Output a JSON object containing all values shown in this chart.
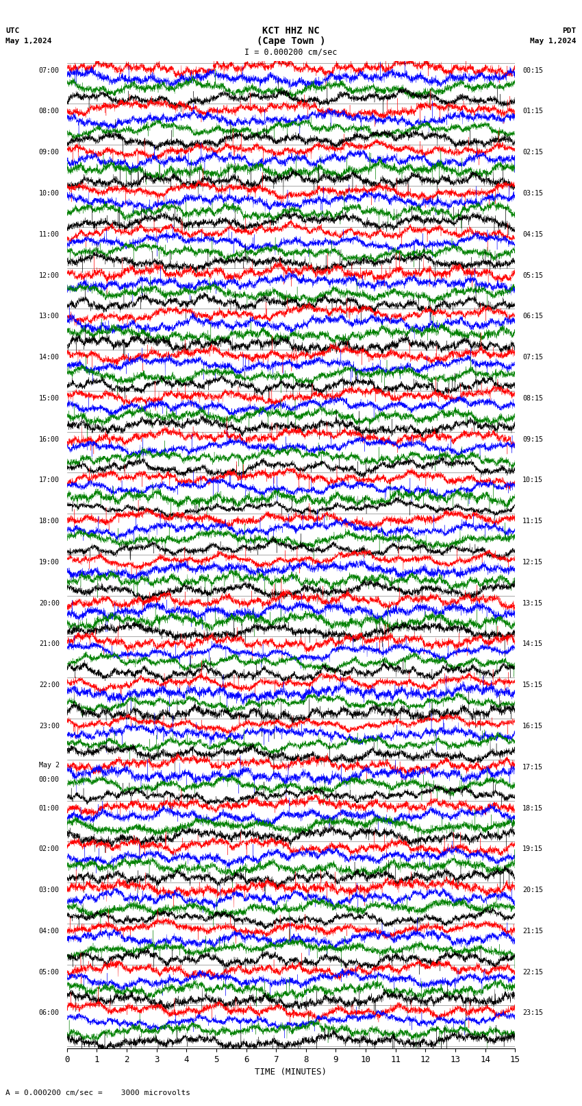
{
  "title_line1": "KCT HHZ NC",
  "title_line2": "(Cape Town )",
  "scale_text": "I = 0.000200 cm/sec",
  "bottom_text": "A = 0.000200 cm/sec =    3000 microvolts",
  "utc_label": "UTC",
  "date_left": "May 1,2024",
  "pdt_label": "PDT",
  "date_right": "May 1,2024",
  "xlabel": "TIME (MINUTES)",
  "xmin": 0,
  "xmax": 15,
  "xticks": [
    0,
    1,
    2,
    3,
    4,
    5,
    6,
    7,
    8,
    9,
    10,
    11,
    12,
    13,
    14,
    15
  ],
  "num_rows": 24,
  "samples_per_trace": 4500,
  "colors": [
    "red",
    "blue",
    "green",
    "black"
  ],
  "background": "white",
  "left_times_utc": [
    "07:00",
    "08:00",
    "09:00",
    "10:00",
    "11:00",
    "12:00",
    "13:00",
    "14:00",
    "15:00",
    "16:00",
    "17:00",
    "18:00",
    "19:00",
    "20:00",
    "21:00",
    "22:00",
    "23:00",
    "May 2|00:00",
    "01:00",
    "02:00",
    "03:00",
    "04:00",
    "05:00",
    "06:00"
  ],
  "right_times_pdt": [
    "00:15",
    "01:15",
    "02:15",
    "03:15",
    "04:15",
    "05:15",
    "06:15",
    "07:15",
    "08:15",
    "09:15",
    "10:15",
    "11:15",
    "12:15",
    "13:15",
    "14:15",
    "15:15",
    "16:15",
    "17:15",
    "18:15",
    "19:15",
    "20:15",
    "21:15",
    "22:15",
    "23:15"
  ],
  "lw": 0.25,
  "band_offsets": [
    0.38,
    0.13,
    -0.12,
    -0.37
  ],
  "band_amp": 0.22
}
